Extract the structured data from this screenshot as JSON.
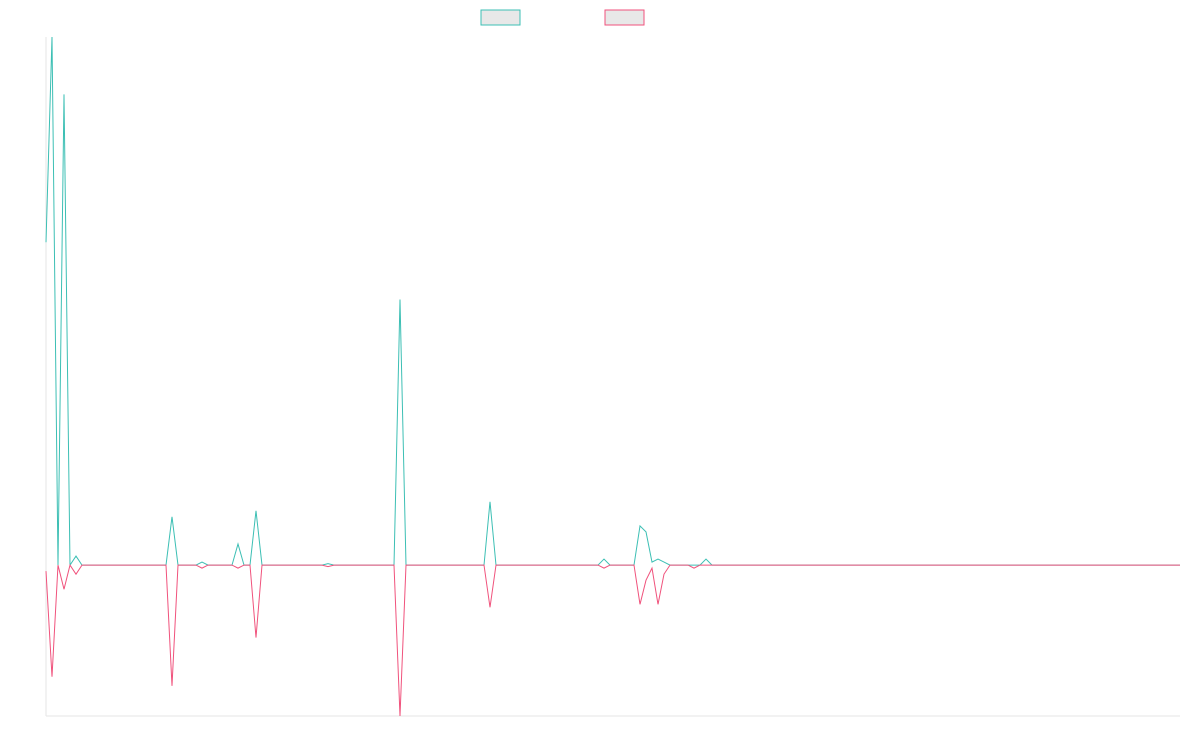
{
  "chart_data": {
    "type": "line",
    "ylim": [
      -0.5,
      1.75
    ],
    "legend": "top",
    "series": [
      {
        "color": "#3cbfb4",
        "values": [
          1.07,
          1.75,
          0,
          1.56,
          0,
          0.03,
          0,
          0,
          0,
          0,
          0,
          0,
          0,
          0,
          0,
          0,
          0,
          0,
          0,
          0,
          0,
          0.16,
          0,
          0,
          0,
          0,
          0.01,
          0,
          0,
          0,
          0,
          0,
          0.07,
          0,
          0,
          0.18,
          0,
          0,
          0,
          0,
          0,
          0,
          0,
          0,
          0,
          0,
          0,
          0.005,
          0,
          0,
          0,
          0,
          0,
          0,
          0,
          0,
          0,
          0,
          0,
          0.88,
          0,
          0,
          0,
          0,
          0,
          0,
          0,
          0,
          0,
          0,
          0,
          0,
          0,
          0,
          0.21,
          0,
          0,
          0,
          0,
          0,
          0,
          0,
          0,
          0,
          0,
          0,
          0,
          0,
          0,
          0,
          0,
          0,
          0,
          0.02,
          0,
          0,
          0,
          0,
          0,
          0.13,
          0.11,
          0.01,
          0.02,
          0.01,
          0,
          0,
          0,
          0,
          0,
          0,
          0.02,
          0,
          0,
          0,
          0,
          0,
          0,
          0,
          0,
          0,
          0,
          0,
          0,
          0,
          0,
          0,
          0,
          0,
          0,
          0,
          0,
          0,
          0,
          0,
          0,
          0,
          0,
          0,
          0,
          0,
          0,
          0,
          0,
          0,
          0,
          0,
          0,
          0,
          0,
          0,
          0,
          0,
          0,
          0,
          0,
          0,
          0,
          0,
          0,
          0,
          0,
          0,
          0,
          0,
          0,
          0,
          0,
          0,
          0,
          0,
          0,
          0,
          0,
          0,
          0,
          0,
          0,
          0,
          0,
          0,
          0,
          0,
          0,
          0,
          0,
          0,
          0,
          0,
          0,
          0
        ]
      },
      {
        "color": "#f0527c",
        "values": [
          -0.02,
          -0.37,
          0,
          -0.08,
          0,
          -0.03,
          0,
          0,
          0,
          0,
          0,
          0,
          0,
          0,
          0,
          0,
          0,
          0,
          0,
          0,
          0,
          -0.4,
          0,
          0,
          0,
          0,
          -0.01,
          0,
          0,
          0,
          0,
          0,
          -0.01,
          0,
          0,
          -0.24,
          0,
          0,
          0,
          0,
          0,
          0,
          0,
          0,
          0,
          0,
          0,
          -0.005,
          0,
          0,
          0,
          0,
          0,
          0,
          0,
          0,
          0,
          0,
          0,
          -0.5,
          0,
          0,
          0,
          0,
          0,
          0,
          0,
          0,
          0,
          0,
          0,
          0,
          0,
          0,
          -0.14,
          0,
          0,
          0,
          0,
          0,
          0,
          0,
          0,
          0,
          0,
          0,
          0,
          0,
          0,
          0,
          0,
          0,
          0,
          -0.01,
          0,
          0,
          0,
          0,
          0,
          -0.13,
          -0.05,
          -0.01,
          -0.13,
          -0.03,
          0,
          0,
          0,
          0,
          -0.01,
          0,
          0,
          0,
          0,
          0,
          0,
          0,
          0,
          0,
          0,
          0,
          0,
          0,
          0,
          0,
          0,
          0,
          0,
          0,
          0,
          0,
          0,
          0,
          0,
          0,
          0,
          0,
          0,
          0,
          0,
          0,
          0,
          0,
          0,
          0,
          0,
          0,
          0,
          0,
          0,
          0,
          0,
          0,
          0,
          0,
          0,
          0,
          0,
          0,
          0,
          0,
          0,
          0,
          0,
          0,
          0,
          0,
          0,
          0,
          0,
          0,
          0,
          0,
          0,
          0,
          0,
          0,
          0,
          0,
          0,
          0,
          0,
          0,
          0,
          0,
          0,
          0,
          0,
          0,
          0,
          0
        ]
      }
    ]
  }
}
